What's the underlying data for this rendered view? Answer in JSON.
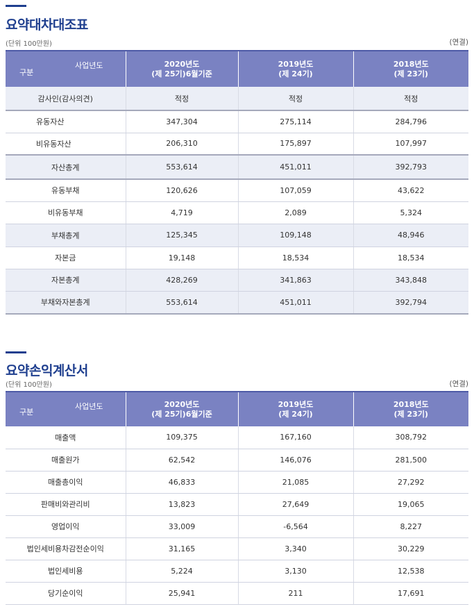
{
  "balance": {
    "title": "요약대차대조표",
    "unit": "(단위 100만원)",
    "consolidated": "(연결)",
    "corner_top": "사업년도",
    "corner_bottom": "구분",
    "columns": [
      {
        "line1": "2020년도",
        "line2": "(제 25기)6월기준"
      },
      {
        "line1": "2019년도",
        "line2": "(제 24기)"
      },
      {
        "line1": "2018년도",
        "line2": "(제 23기)"
      }
    ],
    "rows": [
      {
        "label": "감사인(감사의견)",
        "values": [
          "적정",
          "적정",
          "적정"
        ]
      },
      {
        "label": "유동자산",
        "values": [
          "347,304",
          "275,114",
          "284,796"
        ]
      },
      {
        "label": "비유동자산",
        "values": [
          "206,310",
          "175,897",
          "107,997"
        ]
      },
      {
        "label": "자산총계",
        "values": [
          "553,614",
          "451,011",
          "392,793"
        ]
      },
      {
        "label": "유동부채",
        "values": [
          "120,626",
          "107,059",
          "43,622"
        ]
      },
      {
        "label": "비유동부채",
        "values": [
          "4,719",
          "2,089",
          "5,324"
        ]
      },
      {
        "label": "부채총계",
        "values": [
          "125,345",
          "109,148",
          "48,946"
        ]
      },
      {
        "label": "자본금",
        "values": [
          "19,148",
          "18,534",
          "18,534"
        ]
      },
      {
        "label": "자본총계",
        "values": [
          "428,269",
          "341,863",
          "343,848"
        ]
      },
      {
        "label": "부채와자본총계",
        "values": [
          "553,614",
          "451,011",
          "392,794"
        ]
      }
    ]
  },
  "income": {
    "title": "요약손익계산서",
    "unit": "(단위 100만원)",
    "consolidated": "(연결)",
    "corner_top": "사업년도",
    "corner_bottom": "구분",
    "columns": [
      {
        "line1": "2020년도",
        "line2": "(제 25기)6월기준"
      },
      {
        "line1": "2019년도",
        "line2": "(제 24기)"
      },
      {
        "line1": "2018년도",
        "line2": "(제 23기)"
      }
    ],
    "rows": [
      {
        "label": "매출액",
        "values": [
          "109,375",
          "167,160",
          "308,792"
        ]
      },
      {
        "label": "매출원가",
        "values": [
          "62,542",
          "146,076",
          "281,500"
        ]
      },
      {
        "label": "매출총이익",
        "values": [
          "46,833",
          "21,085",
          "27,292"
        ]
      },
      {
        "label": "판매비와관리비",
        "values": [
          "13,823",
          "27,649",
          "19,065"
        ]
      },
      {
        "label": "영업이익",
        "values": [
          "33,009",
          "-6,564",
          "8,227"
        ]
      },
      {
        "label": "법인세비용차감전순이익",
        "values": [
          "31,165",
          "3,340",
          "30,229"
        ]
      },
      {
        "label": "법인세비용",
        "values": [
          "5,224",
          "3,130",
          "12,538"
        ]
      },
      {
        "label": "당기순이익",
        "values": [
          "25,941",
          "211",
          "17,691"
        ]
      }
    ]
  }
}
